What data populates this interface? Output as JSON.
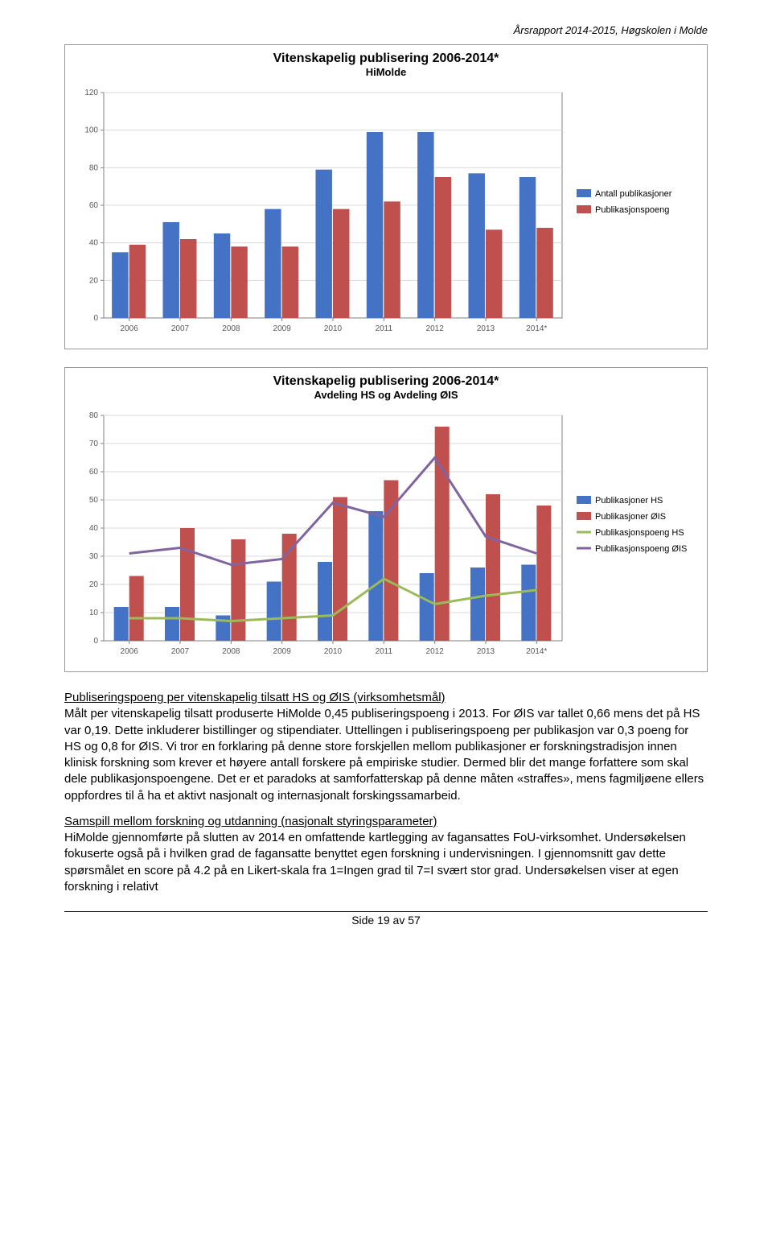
{
  "header": {
    "report_title": "Årsrapport 2014-2015, Høgskolen i Molde"
  },
  "chart1": {
    "type": "bar",
    "title": "Vitenskapelig publisering 2006-2014*",
    "subtitle": "HiMolde",
    "categories": [
      "2006",
      "2007",
      "2008",
      "2009",
      "2010",
      "2011",
      "2012",
      "2013",
      "2014*"
    ],
    "series": [
      {
        "name": "Antall publikasjoner",
        "color": "#4472c4",
        "values": [
          35,
          51,
          45,
          58,
          79,
          99,
          99,
          77,
          75
        ]
      },
      {
        "name": "Publikasjonspoeng",
        "color": "#c0504d",
        "values": [
          39,
          42,
          38,
          38,
          58,
          62,
          75,
          47,
          48
        ]
      }
    ],
    "ylim": [
      0,
      120
    ],
    "ytick_step": 20,
    "plot_bg": "#ffffff",
    "grid_color": "#d9d9d9",
    "axis_color": "#808080",
    "bar_group_width": 0.68,
    "title_fontsize": 16,
    "subtitle_fontsize": 13,
    "legend_fontsize": 11,
    "axis_fontsize": 10
  },
  "chart2": {
    "type": "bar-line",
    "title": "Vitenskapelig publisering 2006-2014*",
    "subtitle": "Avdeling HS og Avdeling ØIS",
    "categories": [
      "2006",
      "2007",
      "2008",
      "2009",
      "2010",
      "2011",
      "2012",
      "2013",
      "2014*"
    ],
    "bars": [
      {
        "name": "Publikasjoner HS",
        "color": "#4472c4",
        "values": [
          12,
          12,
          9,
          21,
          28,
          46,
          24,
          26,
          27
        ]
      },
      {
        "name": "Publikasjoner ØIS",
        "color": "#c0504d",
        "values": [
          23,
          40,
          36,
          38,
          51,
          57,
          76,
          52,
          48
        ]
      }
    ],
    "lines": [
      {
        "name": "Publikasjonspoeng HS",
        "color": "#9bbb59",
        "values": [
          8,
          8,
          7,
          8,
          9,
          22,
          13,
          16,
          18
        ],
        "width": 3
      },
      {
        "name": "Publikasjonspoeng ØIS",
        "color": "#8064a2",
        "values": [
          31,
          33,
          27,
          29,
          49,
          44,
          65,
          37,
          31
        ],
        "width": 3
      }
    ],
    "ylim": [
      0,
      80
    ],
    "ytick_step": 10,
    "plot_bg": "#ffffff",
    "grid_color": "#d9d9d9",
    "axis_color": "#808080",
    "bar_group_width": 0.6,
    "title_fontsize": 16,
    "subtitle_fontsize": 13,
    "legend_fontsize": 11,
    "axis_fontsize": 10
  },
  "body": {
    "p1_heading": "Publiseringspoeng per vitenskapelig tilsatt HS og ØIS (virksomhetsmål)",
    "p1": "Målt per vitenskapelig tilsatt produserte HiMolde 0,45 publiseringspoeng i 2013. For ØIS var tallet 0,66 mens det på HS var 0,19. Dette inkluderer bistillinger og stipendiater. Uttellingen i publiseringspoeng per publikasjon var 0,3 poeng for HS og 0,8 for ØIS. Vi tror en forklaring på denne store forskjellen mellom publikasjoner er forskningstradisjon innen klinisk forskning som krever et høyere antall forskere på empiriske studier. Dermed blir det mange forfattere som skal dele publikasjonspoengene. Det er et paradoks at samforfatterskap på denne måten «straffes», mens fagmiljøene ellers oppfordres til å ha et aktivt nasjonalt og internasjonalt forskingssamarbeid.",
    "p2_heading": "Samspill mellom forskning og utdanning (nasjonalt styringsparameter)",
    "p2": "HiMolde gjennomførte på slutten av 2014 en omfattende kartlegging av fagansattes FoU-virksomhet. Undersøkelsen fokuserte også på i hvilken grad de fagansatte benyttet egen forskning i undervisningen. I gjennomsnitt gav dette spørsmålet en score på 4.2 på en Likert-skala fra 1=Ingen grad til 7=I svært stor grad. Undersøkelsen viser at egen forskning i relativt"
  },
  "footer": {
    "page_line": "Side 19 av 57"
  }
}
